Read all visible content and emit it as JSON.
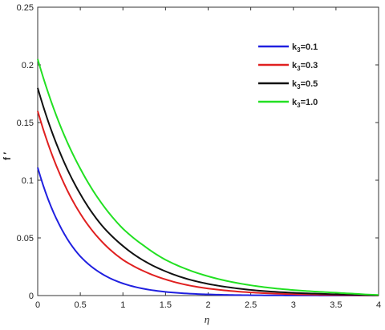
{
  "chart_data": {
    "type": "line",
    "title": "",
    "xlabel": "η",
    "ylabel": "f ′",
    "xlim": [
      0,
      4
    ],
    "ylim": [
      0,
      0.25
    ],
    "xticks": [
      0,
      0.5,
      1,
      1.5,
      2,
      2.5,
      3,
      3.5,
      4
    ],
    "yticks": [
      0,
      0.05,
      0.1,
      0.15,
      0.2,
      0.25
    ],
    "xtick_labels": [
      "0",
      "0.5",
      "1",
      "1.5",
      "2",
      "2.5",
      "3",
      "3.5",
      "4"
    ],
    "ytick_labels": [
      "0",
      "0.05",
      "0.1",
      "0.15",
      "0.2",
      "0.25"
    ],
    "grid": false,
    "legend_position": "top-right",
    "x": [
      0,
      0.25,
      0.5,
      0.75,
      1,
      1.25,
      1.5,
      1.75,
      2,
      2.25,
      2.5,
      2.75,
      3,
      3.25,
      3.5,
      3.75,
      4
    ],
    "series": [
      {
        "name": "k3=0.1",
        "legend_main": "k",
        "legend_sub": "3",
        "legend_rest": "=0.1",
        "color": "#2020e0",
        "values": [
          0.111,
          0.062,
          0.034,
          0.019,
          0.0105,
          0.0058,
          0.0032,
          0.0018,
          0.001,
          0.00055,
          0.0003,
          0.00017,
          0.0001,
          5e-05,
          3e-05,
          2e-05,
          0.0
        ]
      },
      {
        "name": "k3=0.3",
        "legend_main": "k",
        "legend_sub": "3",
        "legend_rest": "=0.3",
        "color": "#e02020",
        "values": [
          0.16,
          0.107,
          0.071,
          0.047,
          0.031,
          0.021,
          0.014,
          0.0092,
          0.0061,
          0.0041,
          0.0027,
          0.0018,
          0.0012,
          0.0008,
          0.0005,
          0.0003,
          0.0001
        ]
      },
      {
        "name": "k3=0.5",
        "legend_main": "k",
        "legend_sub": "3",
        "legend_rest": "=0.5",
        "color": "#111111",
        "values": [
          0.18,
          0.126,
          0.088,
          0.061,
          0.043,
          0.03,
          0.021,
          0.0145,
          0.0101,
          0.0071,
          0.0049,
          0.0034,
          0.0024,
          0.0017,
          0.0011,
          0.0007,
          0.0003
        ]
      },
      {
        "name": "k3=1.0",
        "legend_main": "k",
        "legend_sub": "3",
        "legend_rest": "=1.0",
        "color": "#22e022",
        "values": [
          0.205,
          0.15,
          0.11,
          0.08,
          0.058,
          0.043,
          0.031,
          0.0228,
          0.0167,
          0.0122,
          0.0089,
          0.0065,
          0.0048,
          0.0035,
          0.0025,
          0.0015,
          0.0005
        ]
      }
    ]
  }
}
